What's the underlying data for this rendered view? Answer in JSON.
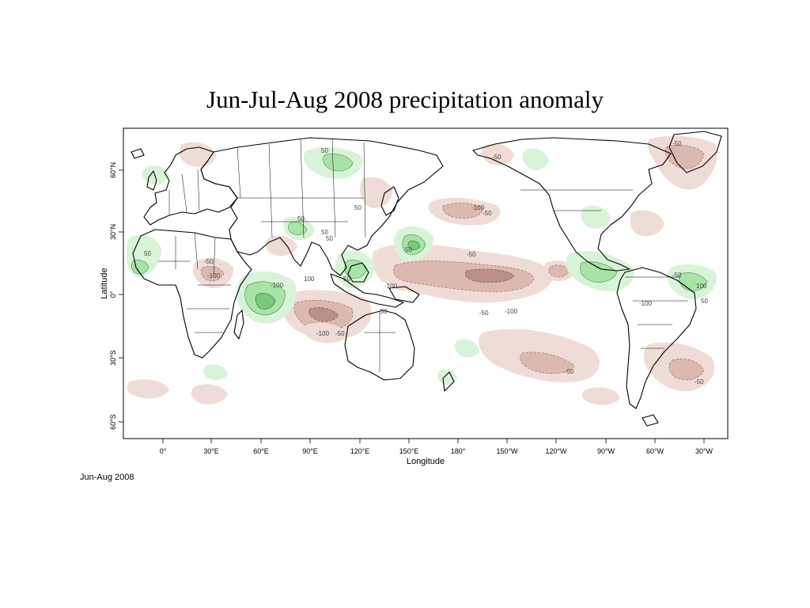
{
  "title": "Jun-Jul-Aug 2008 precipitation anomaly",
  "footer": "Jun-Aug 2008",
  "map": {
    "xlabel": "Longitude",
    "ylabel": "Latitude",
    "lon_ticks": [
      "0°",
      "30°E",
      "60°E",
      "90°E",
      "120°E",
      "150°E",
      "180°",
      "150°W",
      "120°W",
      "90°W",
      "60°W",
      "30°W"
    ],
    "lat_ticks": [
      "60°N",
      "30°N",
      "0°",
      "30°S",
      "60°S"
    ],
    "contour_labels": [
      "50",
      "-50",
      "-100",
      "-50",
      "50",
      "50",
      "-50",
      "-50",
      "-100",
      "50",
      "-100",
      "100",
      "50",
      "-100",
      "-50",
      "-100",
      "-50",
      "50",
      "50",
      "-100",
      "-50",
      "-50",
      "100",
      "-50",
      "50",
      "-100",
      "-50",
      "-50",
      "50"
    ],
    "colors": {
      "dry_light": "#f0dcd6",
      "dry_mid": "#dbb8b0",
      "dry_strong": "#b99088",
      "wet_light": "#d9f3d9",
      "wet_mid": "#a8e3a8",
      "wet_strong": "#7cc77e"
    }
  }
}
